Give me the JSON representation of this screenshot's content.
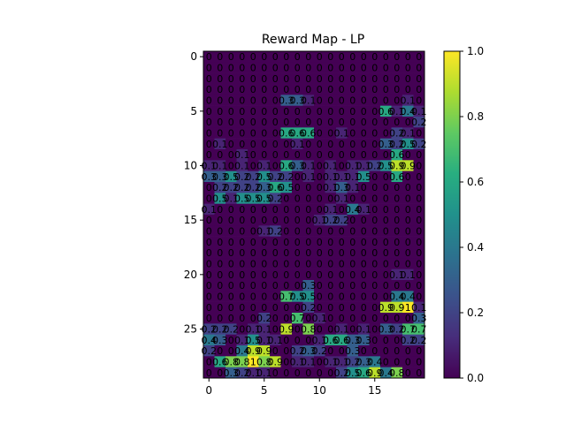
{
  "chart_data": {
    "type": "heatmap",
    "title": "Reward Map - LP",
    "xlabel": "",
    "ylabel": "",
    "x_ticks": [
      "0",
      "5",
      "10",
      "15"
    ],
    "y_ticks": [
      "0",
      "5",
      "10",
      "15",
      "20",
      "25"
    ],
    "colorbar_ticks": [
      "0.0",
      "0.2",
      "0.4",
      "0.6",
      "0.8",
      "1.0"
    ],
    "vmin": 0.0,
    "vmax": 1.0,
    "colormap": "viridis",
    "rows": 30,
    "cols": 20,
    "values": [
      [
        0,
        0,
        0,
        0,
        0,
        0,
        0,
        0,
        0,
        0,
        0,
        0,
        0,
        0,
        0,
        0,
        0,
        0,
        0,
        0
      ],
      [
        0,
        0,
        0,
        0,
        0,
        0,
        0,
        0,
        0,
        0,
        0,
        0,
        0,
        0,
        0,
        0,
        0,
        0,
        0,
        0
      ],
      [
        0,
        0,
        0,
        0,
        0,
        0,
        0,
        0,
        0,
        0,
        0,
        0,
        0,
        0,
        0,
        0,
        0,
        0,
        0,
        0
      ],
      [
        0,
        0,
        0,
        0,
        0,
        0,
        0,
        0,
        0,
        0,
        0,
        0,
        0,
        0,
        0,
        0,
        0,
        0,
        0,
        0
      ],
      [
        0,
        0,
        0,
        0,
        0,
        0,
        0,
        0.3,
        0.3,
        0.1,
        0,
        0,
        0,
        0,
        0,
        0,
        0,
        0,
        0.1,
        0
      ],
      [
        0,
        0,
        0,
        0,
        0,
        0,
        0,
        0,
        0,
        0,
        0,
        0,
        0,
        0,
        0,
        0,
        0.6,
        0.1,
        0.4,
        0.1
      ],
      [
        0,
        0,
        0,
        0,
        0,
        0,
        0,
        0,
        0,
        0,
        0,
        0,
        0,
        0,
        0,
        0,
        0,
        0,
        0,
        0.2
      ],
      [
        0,
        0,
        0,
        0,
        0,
        0,
        0,
        0.6,
        0.6,
        0.6,
        0,
        0,
        0.1,
        0,
        0,
        0,
        0,
        0.2,
        0.1,
        0
      ],
      [
        0,
        0.1,
        0,
        0,
        0,
        0,
        0,
        0,
        0.1,
        0,
        0,
        0,
        0,
        0,
        0,
        0,
        0.3,
        0.2,
        0.5,
        0.2
      ],
      [
        0,
        0,
        0,
        0.1,
        0,
        0,
        0,
        0,
        0,
        0,
        0,
        0,
        0,
        0,
        0,
        0,
        0,
        0.6,
        0,
        0
      ],
      [
        0.1,
        0.1,
        0,
        0.1,
        0,
        0.1,
        0,
        0.6,
        0.3,
        0.1,
        0,
        0.1,
        0,
        0.1,
        0.1,
        0.2,
        0.5,
        0.9,
        0.9,
        0
      ],
      [
        0.3,
        0.3,
        0.5,
        0.2,
        0.2,
        0.5,
        0.2,
        0.2,
        0,
        0.1,
        0,
        0.1,
        0.1,
        0.1,
        0.5,
        0,
        0,
        0.6,
        0,
        0
      ],
      [
        0,
        0.2,
        0.2,
        0.2,
        0.2,
        0.3,
        0.6,
        0.5,
        0,
        0,
        0,
        0.1,
        0.3,
        0.1,
        0,
        0,
        0,
        0,
        0,
        0
      ],
      [
        0,
        0.5,
        0.1,
        0.5,
        0.5,
        0.5,
        0.2,
        0,
        0,
        0,
        0,
        0,
        0.1,
        0,
        0,
        0,
        0,
        0,
        0,
        0
      ],
      [
        0.1,
        0,
        0,
        0,
        0,
        0,
        0,
        0,
        0,
        0,
        0,
        0.1,
        0,
        0.4,
        0.1,
        0,
        0,
        0,
        0,
        0
      ],
      [
        0,
        0,
        0,
        0,
        0,
        0,
        0,
        0,
        0,
        0,
        0.1,
        0.2,
        0.2,
        0,
        0,
        0,
        0,
        0,
        0,
        0
      ],
      [
        0,
        0,
        0,
        0,
        0,
        0.1,
        0.2,
        0,
        0,
        0,
        0,
        0,
        0,
        0,
        0,
        0,
        0,
        0,
        0,
        0
      ],
      [
        0,
        0,
        0,
        0,
        0,
        0,
        0,
        0,
        0,
        0,
        0,
        0,
        0,
        0,
        0,
        0,
        0,
        0,
        0,
        0
      ],
      [
        0,
        0,
        0,
        0,
        0,
        0,
        0,
        0,
        0,
        0,
        0,
        0,
        0,
        0,
        0,
        0,
        0,
        0,
        0,
        0
      ],
      [
        0,
        0,
        0,
        0,
        0,
        0,
        0,
        0,
        0,
        0,
        0,
        0,
        0,
        0,
        0,
        0,
        0,
        0,
        0,
        0
      ],
      [
        0,
        0,
        0,
        0,
        0,
        0,
        0,
        0,
        0,
        0,
        0,
        0,
        0,
        0,
        0,
        0,
        0,
        0.1,
        0.1,
        0
      ],
      [
        0,
        0,
        0,
        0,
        0,
        0,
        0,
        0,
        0,
        0.3,
        0,
        0,
        0,
        0,
        0,
        0,
        0,
        0,
        0,
        0
      ],
      [
        0,
        0,
        0,
        0,
        0,
        0,
        0,
        0.7,
        0.5,
        0.5,
        0,
        0,
        0,
        0,
        0,
        0,
        0,
        0.4,
        0.4,
        0
      ],
      [
        0,
        0,
        0,
        0,
        0,
        0,
        0,
        0,
        0,
        0.2,
        0,
        0,
        0,
        0,
        0,
        0,
        0.9,
        0.9,
        1.0,
        0.1
      ],
      [
        0,
        0,
        0,
        0,
        0,
        0.2,
        0,
        0,
        0.7,
        0,
        0.1,
        0,
        0,
        0,
        0,
        0,
        0,
        0,
        0,
        0.3
      ],
      [
        0.2,
        0.2,
        0.2,
        0,
        0.1,
        0.1,
        0,
        0.9,
        0,
        0.8,
        0,
        0,
        0.1,
        0,
        0.1,
        0,
        0.3,
        0.2,
        0.7,
        0.7
      ],
      [
        0.4,
        0.3,
        0,
        0.1,
        0.5,
        0.1,
        0.1,
        0,
        0,
        0,
        0.1,
        0.6,
        0.6,
        0.3,
        0.3,
        0,
        0,
        0,
        0.2,
        0.2
      ],
      [
        0.2,
        0,
        0,
        0.4,
        0.9,
        0.9,
        0,
        0,
        0.2,
        0.3,
        0.2,
        0,
        0,
        0.3,
        0,
        0,
        0,
        0,
        0,
        0
      ],
      [
        0,
        0.6,
        0.8,
        0.8,
        1.0,
        0.8,
        0.9,
        0,
        0.1,
        0.1,
        0,
        0.1,
        0.1,
        0.2,
        0.3,
        0.4,
        0,
        0,
        0,
        0
      ],
      [
        0,
        0,
        0.3,
        0.2,
        0.1,
        0.1,
        0,
        0,
        0,
        0,
        0,
        0,
        0.2,
        0.5,
        0.6,
        0.9,
        0.4,
        0.8,
        0,
        0
      ]
    ]
  }
}
